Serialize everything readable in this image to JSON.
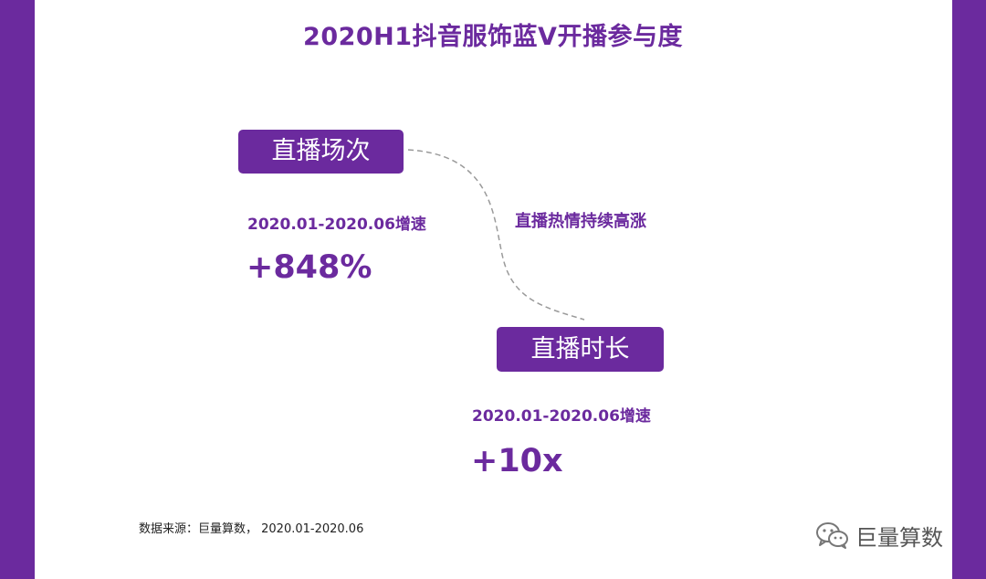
{
  "title": "2020H1抖音服饰蓝V开播参与度",
  "metrics": [
    {
      "label": "直播场次",
      "period_label": "2020.01-2020.06增速",
      "value": "+848%"
    },
    {
      "label": "直播时长",
      "period_label": "2020.01-2020.06增速",
      "value": "+10x"
    }
  ],
  "trend_note": "直播热情持续高涨",
  "source": "数据来源：巨量算数， 2020.01-2020.06",
  "watermark": {
    "text": "巨量算数",
    "icon": "wechat-icon"
  },
  "colors": {
    "accent": "#6b2a9e",
    "text_dark": "#222222",
    "watermark": "#555555"
  }
}
